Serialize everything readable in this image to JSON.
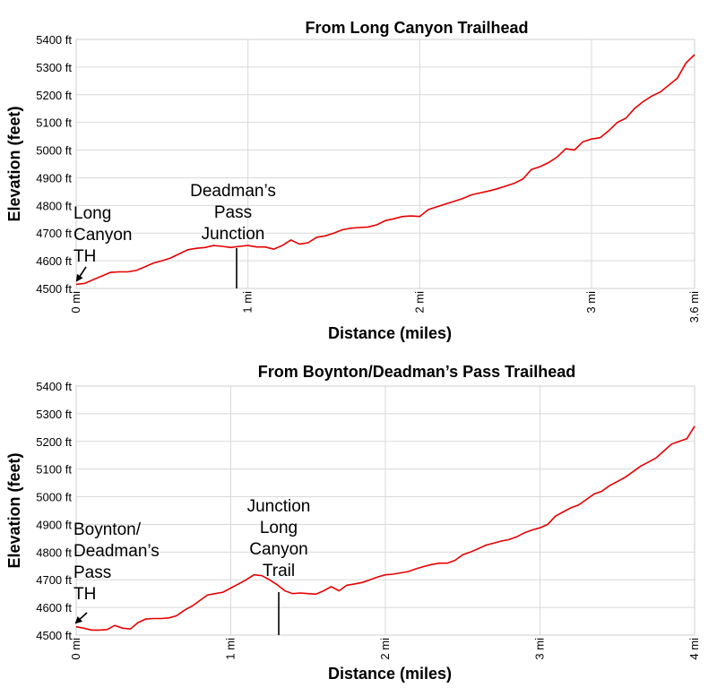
{
  "chart_data": [
    {
      "type": "line",
      "title": "From Long Canyon Trailhead",
      "xlabel": "Distance (miles)",
      "ylabel": "Elevation (feet)",
      "xlim": [
        0,
        3.6
      ],
      "ylim": [
        4500,
        5400
      ],
      "y_ticks": [
        4500,
        4600,
        4700,
        4800,
        4900,
        5000,
        5100,
        5200,
        5300,
        5400
      ],
      "y_tick_labels": [
        "4500 ft",
        "4600 ft",
        "4700 ft",
        "4800 ft",
        "4900 ft",
        "5000 ft",
        "5100 ft",
        "5200 ft",
        "5300 ft",
        "5400 ft"
      ],
      "x_ticks": [
        0,
        1,
        2,
        3,
        3.6
      ],
      "x_tick_labels": [
        "0 mi",
        "1 mi",
        "2 mi",
        "3 mi",
        "3.6 mi"
      ],
      "grid": true,
      "color": "#e60000",
      "series": [
        {
          "x": [
            0,
            0.05,
            0.1,
            0.15,
            0.2,
            0.25,
            0.3,
            0.35,
            0.4,
            0.45,
            0.5,
            0.55,
            0.6,
            0.65,
            0.7,
            0.75,
            0.8,
            0.85,
            0.9,
            0.95,
            1.0,
            1.05,
            1.1,
            1.15,
            1.2,
            1.25,
            1.3,
            1.35,
            1.4,
            1.45,
            1.5,
            1.55,
            1.6,
            1.65,
            1.7,
            1.75,
            1.8,
            1.85,
            1.9,
            1.95,
            2.0,
            2.05,
            2.1,
            2.15,
            2.2,
            2.25,
            2.3,
            2.35,
            2.4,
            2.45,
            2.5,
            2.55,
            2.6,
            2.65,
            2.7,
            2.75,
            2.8,
            2.85,
            2.9,
            2.95,
            3.0,
            3.05,
            3.1,
            3.15,
            3.2,
            3.25,
            3.3,
            3.35,
            3.4,
            3.45,
            3.5,
            3.55,
            3.6
          ],
          "y": [
            4515,
            4518,
            4532,
            4545,
            4558,
            4560,
            4560,
            4565,
            4578,
            4592,
            4600,
            4610,
            4625,
            4640,
            4645,
            4648,
            4655,
            4652,
            4648,
            4652,
            4655,
            4650,
            4650,
            4642,
            4655,
            4675,
            4660,
            4665,
            4685,
            4690,
            4700,
            4712,
            4718,
            4720,
            4722,
            4730,
            4745,
            4752,
            4760,
            4762,
            4760,
            4785,
            4795,
            4805,
            4815,
            4825,
            4838,
            4845,
            4852,
            4860,
            4870,
            4880,
            4895,
            4930,
            4940,
            4955,
            4975,
            5005,
            5000,
            5030,
            5040,
            5045,
            5070,
            5100,
            5115,
            5150,
            5175,
            5195,
            5210,
            5235,
            5260,
            5315,
            5345
          ]
        }
      ],
      "annotations": [
        {
          "lines": [
            "Long",
            "Canyon",
            "TH"
          ],
          "x": 0.0,
          "y": 4515
        },
        {
          "lines": [
            "Deadman’s",
            "Pass",
            "Junction"
          ],
          "x": 0.92,
          "y": 4652
        }
      ]
    },
    {
      "type": "line",
      "title": "From Boynton/Deadman’s Pass Trailhead",
      "xlabel": "Distance (miles)",
      "ylabel": "Elevation (feet)",
      "xlim": [
        0,
        4
      ],
      "ylim": [
        4500,
        5400
      ],
      "y_ticks": [
        4500,
        4600,
        4700,
        4800,
        4900,
        5000,
        5100,
        5200,
        5300,
        5400
      ],
      "y_tick_labels": [
        "4500 ft",
        "4600 ft",
        "4700 ft",
        "4800 ft",
        "4900 ft",
        "5000 ft",
        "5100 ft",
        "5200 ft",
        "5300 ft",
        "5400 ft"
      ],
      "x_ticks": [
        0,
        1,
        2,
        3,
        4
      ],
      "x_tick_labels": [
        "0 mi",
        "1 mi",
        "2 mi",
        "3 mi",
        "4 mi"
      ],
      "grid": true,
      "color": "#e60000",
      "series": [
        {
          "x": [
            0,
            0.05,
            0.1,
            0.15,
            0.2,
            0.25,
            0.3,
            0.35,
            0.4,
            0.45,
            0.5,
            0.55,
            0.6,
            0.65,
            0.7,
            0.75,
            0.8,
            0.85,
            0.9,
            0.95,
            1.0,
            1.05,
            1.1,
            1.15,
            1.2,
            1.25,
            1.3,
            1.35,
            1.4,
            1.45,
            1.5,
            1.55,
            1.6,
            1.65,
            1.7,
            1.75,
            1.8,
            1.85,
            1.9,
            1.95,
            2.0,
            2.05,
            2.1,
            2.15,
            2.2,
            2.25,
            2.3,
            2.35,
            2.4,
            2.45,
            2.5,
            2.55,
            2.6,
            2.65,
            2.7,
            2.75,
            2.8,
            2.85,
            2.9,
            2.95,
            3.0,
            3.05,
            3.1,
            3.15,
            3.2,
            3.25,
            3.3,
            3.35,
            3.4,
            3.45,
            3.5,
            3.55,
            3.6,
            3.65,
            3.7,
            3.75,
            3.8,
            3.85,
            3.9,
            3.95,
            4.0
          ],
          "y": [
            4530,
            4525,
            4518,
            4518,
            4520,
            4535,
            4525,
            4522,
            4545,
            4558,
            4560,
            4560,
            4562,
            4570,
            4590,
            4605,
            4625,
            4645,
            4650,
            4655,
            4670,
            4685,
            4700,
            4718,
            4715,
            4700,
            4682,
            4660,
            4650,
            4652,
            4650,
            4648,
            4660,
            4675,
            4660,
            4680,
            4685,
            4690,
            4700,
            4710,
            4718,
            4720,
            4725,
            4730,
            4740,
            4748,
            4755,
            4760,
            4760,
            4770,
            4790,
            4800,
            4812,
            4825,
            4832,
            4840,
            4845,
            4855,
            4870,
            4880,
            4888,
            4900,
            4930,
            4945,
            4960,
            4970,
            4990,
            5010,
            5020,
            5040,
            5055,
            5070,
            5090,
            5110,
            5125,
            5140,
            5165,
            5190,
            5200,
            5210,
            5255
          ]
        }
      ],
      "annotations": [
        {
          "lines": [
            "Boynton/",
            "Deadman’s",
            "Pass",
            "TH"
          ],
          "x": 0.0,
          "y": 4530
        },
        {
          "lines": [
            "Junction",
            "Long",
            "Canyon",
            "Trail"
          ],
          "x": 1.32,
          "y": 4650
        }
      ]
    }
  ]
}
